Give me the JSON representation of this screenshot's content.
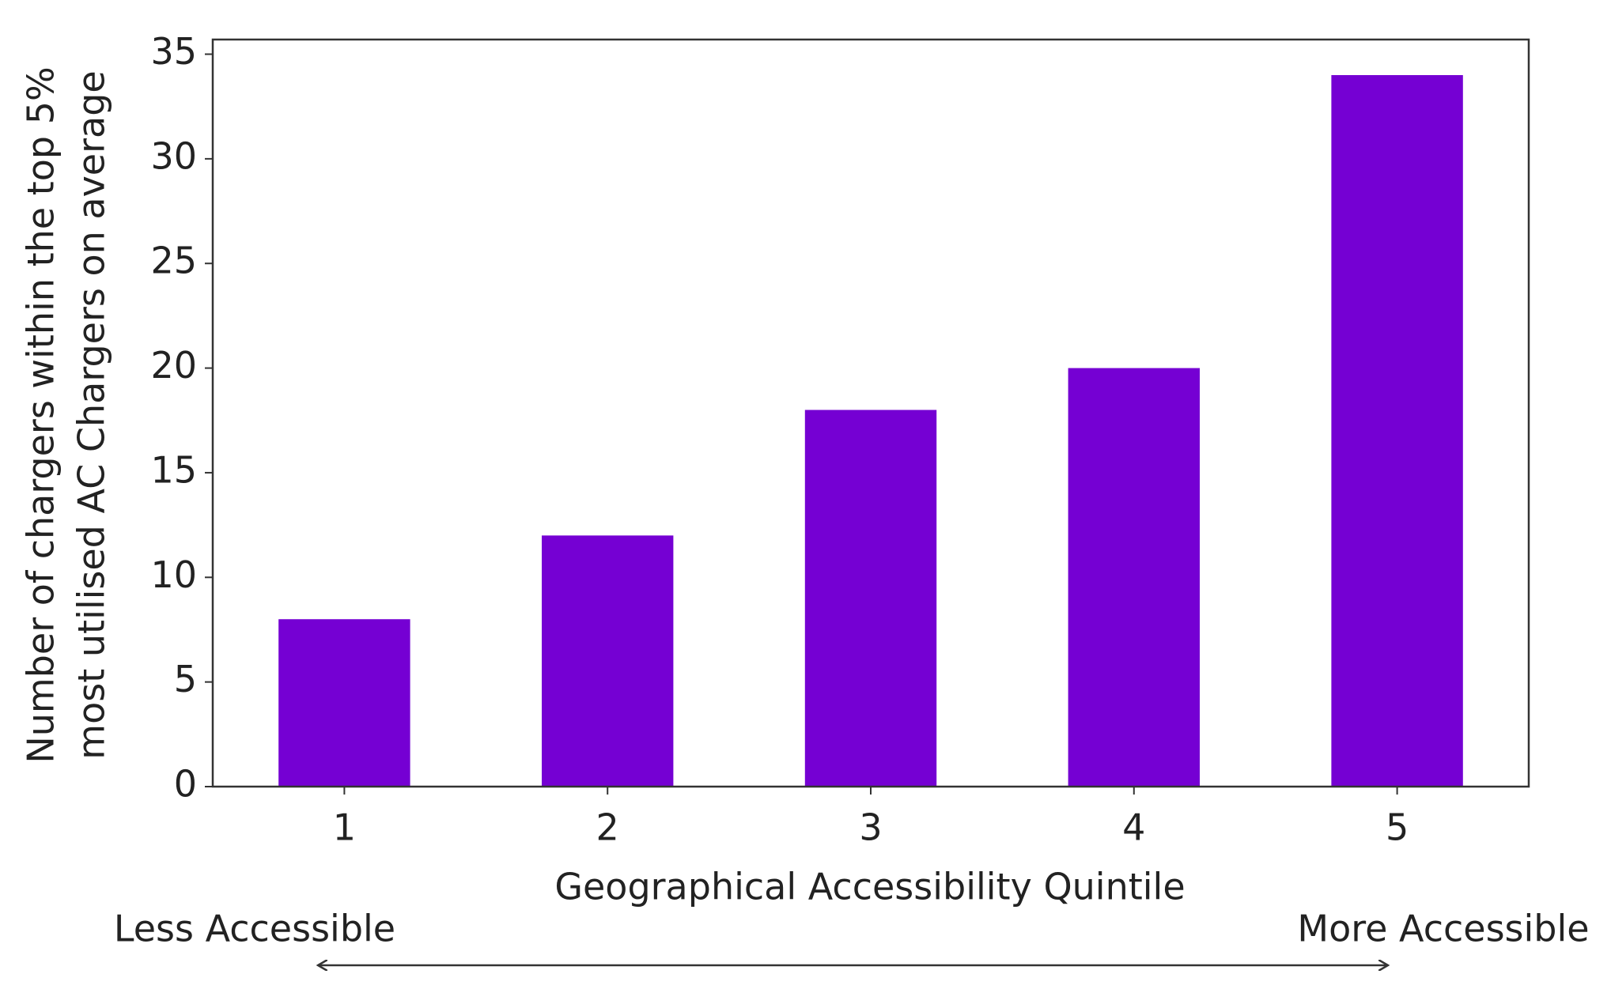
{
  "chart_data": {
    "type": "bar",
    "categories": [
      "1",
      "2",
      "3",
      "4",
      "5"
    ],
    "values": [
      8,
      12,
      18,
      20,
      34
    ],
    "color": "#7500d3",
    "xlabel": "Geographical Accessibility Quintile",
    "ylabel": [
      "Number of chargers within the top 5%",
      "most utilised AC Chargers on average"
    ],
    "annotations": [
      "Less Accessible",
      "More Accessible"
    ],
    "ylim": [
      0,
      35.7
    ],
    "yticks": [
      0,
      5,
      10,
      15,
      20,
      25,
      30,
      35
    ],
    "grid": false
  }
}
